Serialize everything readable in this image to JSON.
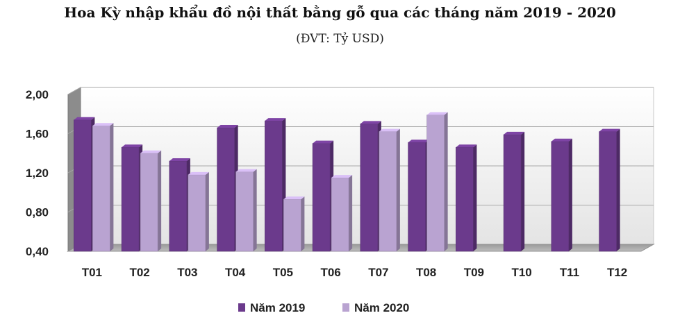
{
  "chart_data": {
    "type": "bar",
    "title": "Hoa Kỳ nhập khẩu đồ nội thất bằng gỗ qua các tháng năm 2019 - 2020",
    "subtitle": "(ĐVT: Tỷ USD)",
    "categories": [
      "T01",
      "T02",
      "T03",
      "T04",
      "T05",
      "T06",
      "T07",
      "T08",
      "T09",
      "T10",
      "T11",
      "T12"
    ],
    "series": [
      {
        "name": "Năm 2019",
        "color": "#6b3a8c",
        "values": [
          1.74,
          1.46,
          1.32,
          1.66,
          1.73,
          1.5,
          1.7,
          1.51,
          1.46,
          1.59,
          1.52,
          1.62
        ]
      },
      {
        "name": "Năm 2020",
        "color": "#b9a3d1",
        "values": [
          1.68,
          1.4,
          1.18,
          1.21,
          0.93,
          1.15,
          1.62,
          1.79,
          null,
          null,
          null,
          null
        ]
      }
    ],
    "ylim": [
      0.4,
      2.0
    ],
    "yticks": [
      "2,00",
      "1,60",
      "1,20",
      "0,80",
      "0,40"
    ],
    "ytick_values": [
      2.0,
      1.6,
      1.2,
      0.8,
      0.4
    ],
    "grid": true,
    "legend_position": "bottom"
  }
}
